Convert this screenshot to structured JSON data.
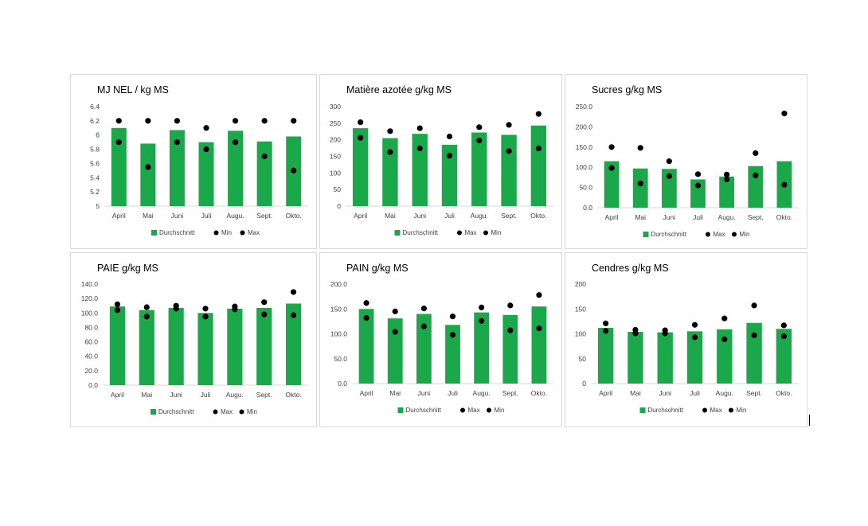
{
  "colors": {
    "bar": "#1aa84a",
    "dot": "#000000",
    "axis": "#d9d9d9",
    "text": "#404040",
    "border": "#d9d9d9"
  },
  "chart_data": [
    {
      "type": "bar",
      "title": "MJ NEL / kg MS",
      "categories": [
        "April",
        "Mai",
        "Juni",
        "Juli",
        "Augu.",
        "Sept.",
        "Okto."
      ],
      "ylim": [
        5,
        6.4
      ],
      "yticks": [
        "6.4",
        "6.2",
        "6",
        "5.8",
        "5.6",
        "5.4",
        "5.2",
        "5"
      ],
      "series": [
        {
          "name": "Durchschnitt",
          "kind": "bar",
          "values": [
            6.1,
            5.88,
            6.07,
            5.9,
            6.06,
            5.91,
            5.98
          ]
        },
        {
          "name": "Min",
          "kind": "dot",
          "values": [
            5.9,
            5.55,
            5.9,
            5.8,
            5.9,
            5.7,
            5.5
          ]
        },
        {
          "name": "Max",
          "kind": "dot",
          "values": [
            6.2,
            6.2,
            6.2,
            6.1,
            6.2,
            6.2,
            6.2
          ]
        }
      ],
      "legend": [
        "Durchschnitt",
        "Min",
        "Max"
      ],
      "legend_position": "bottom",
      "grid": false
    },
    {
      "type": "bar",
      "title": "Matière azotée g/kg MS",
      "categories": [
        "April",
        "Mai",
        "Juni",
        "Juli",
        "Augu.",
        "Sept.",
        "Okto."
      ],
      "ylim": [
        0,
        300
      ],
      "yticks": [
        "300",
        "250",
        "200",
        "150",
        "100",
        "50",
        "0"
      ],
      "series": [
        {
          "name": "Durchschnitt",
          "kind": "bar",
          "values": [
            235,
            205,
            218,
            185,
            222,
            215,
            243
          ]
        },
        {
          "name": "Max",
          "kind": "dot",
          "values": [
            253,
            226,
            235,
            210,
            238,
            245,
            278
          ]
        },
        {
          "name": "Min",
          "kind": "dot",
          "values": [
            206,
            163,
            174,
            152,
            198,
            166,
            174
          ]
        }
      ],
      "legend": [
        "Durchschnitt",
        "Max",
        "Min"
      ],
      "legend_position": "bottom",
      "grid": false
    },
    {
      "type": "bar",
      "title": "Sucres g/kg MS",
      "categories": [
        "April",
        "Mai",
        "Juni",
        "Juli",
        "Augu.",
        "Sept.",
        "Okto."
      ],
      "ylim": [
        0,
        250
      ],
      "yticks": [
        "250.0",
        "200.0",
        "150.0",
        "100.0",
        "50.0",
        "0.0"
      ],
      "series": [
        {
          "name": "Durchschnitt",
          "kind": "bar",
          "values": [
            115,
            97,
            96,
            70,
            77,
            103,
            115
          ]
        },
        {
          "name": "Max",
          "kind": "dot",
          "values": [
            150,
            148,
            115,
            83,
            82,
            135,
            233
          ]
        },
        {
          "name": "Min",
          "kind": "dot",
          "values": [
            98,
            60,
            78,
            55,
            70,
            80,
            57
          ]
        }
      ],
      "legend": [
        "Durchschnitt",
        "Max",
        "Min"
      ],
      "legend_position": "bottom",
      "grid": false
    },
    {
      "type": "bar",
      "title": "PAIE g/kg MS",
      "categories": [
        "April",
        "Mai",
        "Juni",
        "Juli",
        "Augu.",
        "Sept.",
        "Okto."
      ],
      "ylim": [
        0,
        140
      ],
      "yticks": [
        "140.0",
        "120.0",
        "100.0",
        "80.0",
        "60.0",
        "40.0",
        "20.0",
        "0.0"
      ],
      "series": [
        {
          "name": "Durchschnitt",
          "kind": "bar",
          "values": [
            109,
            104,
            107,
            100,
            106,
            107,
            113
          ]
        },
        {
          "name": "Max",
          "kind": "dot",
          "values": [
            112,
            108,
            110,
            106,
            109,
            115,
            129
          ]
        },
        {
          "name": "Min",
          "kind": "dot",
          "values": [
            104,
            95,
            106,
            95,
            105,
            98,
            97
          ]
        }
      ],
      "legend": [
        "Durchschnitt",
        "Max",
        "Min"
      ],
      "legend_position": "bottom",
      "grid": false
    },
    {
      "type": "bar",
      "title": "PAIN g/kg MS",
      "categories": [
        "April",
        "Mai",
        "Juni",
        "Juli",
        "Augu.",
        "Sept.",
        "Okto."
      ],
      "ylim": [
        0,
        200
      ],
      "yticks": [
        "200.0",
        "150.0",
        "100.0",
        "50.0",
        "0.0"
      ],
      "series": [
        {
          "name": "Durchschnitt",
          "kind": "bar",
          "values": [
            150,
            131,
            140,
            118,
            143,
            138,
            155
          ]
        },
        {
          "name": "Max",
          "kind": "dot",
          "values": [
            162,
            145,
            151,
            135,
            153,
            157,
            178
          ]
        },
        {
          "name": "Min",
          "kind": "dot",
          "values": [
            132,
            104,
            115,
            98,
            126,
            107,
            111
          ]
        }
      ],
      "legend": [
        "Durchschnitt",
        "Max",
        "Min"
      ],
      "legend_position": "bottom",
      "grid": false
    },
    {
      "type": "bar",
      "title": "Cendres g/kg MS",
      "categories": [
        "April",
        "Mai",
        "Juni",
        "Juli",
        "Augu.",
        "Sept.",
        "Okto."
      ],
      "ylim": [
        0,
        200
      ],
      "yticks": [
        "200",
        "150",
        "100",
        "50",
        "0"
      ],
      "series": [
        {
          "name": "Durchschnitt",
          "kind": "bar",
          "values": [
            112,
            104,
            103,
            105,
            109,
            122,
            110
          ]
        },
        {
          "name": "Max",
          "kind": "dot",
          "values": [
            121,
            108,
            107,
            118,
            131,
            157,
            117
          ]
        },
        {
          "name": "Min",
          "kind": "dot",
          "values": [
            106,
            101,
            101,
            93,
            89,
            97,
            95
          ]
        }
      ],
      "legend": [
        "Durchschnitt",
        "Max",
        "Min"
      ],
      "legend_position": "bottom",
      "grid": false
    }
  ]
}
